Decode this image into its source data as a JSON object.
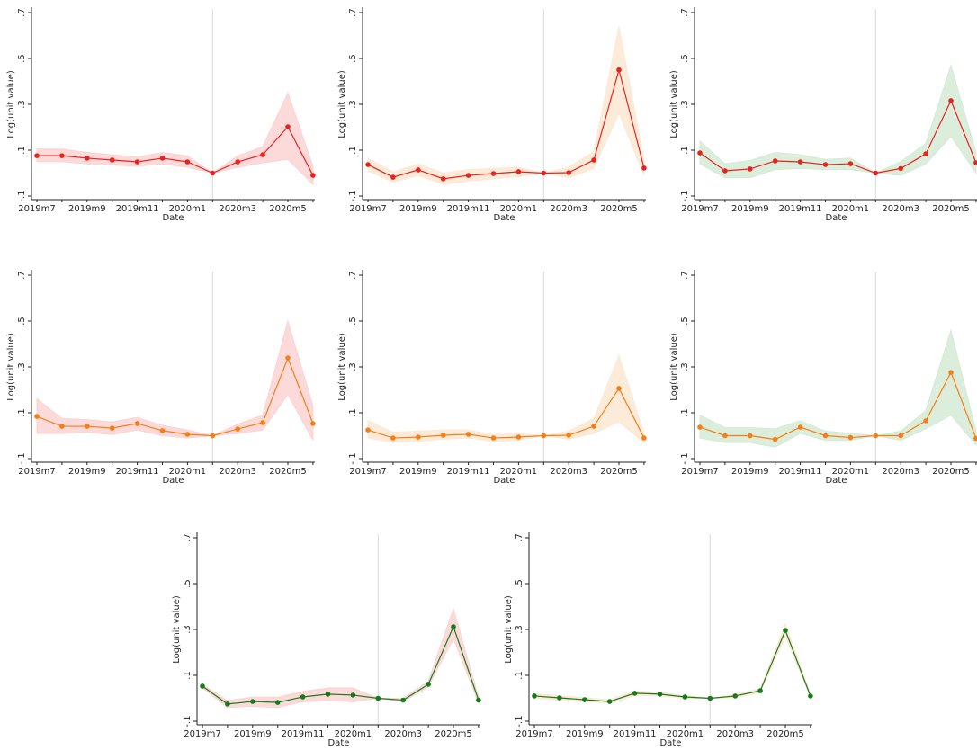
{
  "chart_data": [
    {
      "type": "line",
      "y_label": "Log(unit value)",
      "x_label": "Date",
      "categories": [
        "2019m7",
        null,
        "2019m9",
        null,
        "2019m11",
        null,
        "2020m1",
        null,
        "2020m3",
        null,
        "2020m5",
        null
      ],
      "ylim": [
        -0.1,
        0.7
      ],
      "yticks": [
        {
          "value": -0.1,
          "label": "-.1"
        },
        {
          "value": 0.1,
          "label": ".1"
        },
        {
          "value": 0.3,
          "label": ".3"
        },
        {
          "value": 0.5,
          "label": ".5"
        },
        {
          "value": 0.7,
          "label": ".7"
        }
      ],
      "xline": 7,
      "series": [
        {
          "color": "#e8231f",
          "values": [
            0.076,
            0.076,
            0.065,
            0.057,
            0.049,
            0.065,
            0.049,
            0,
            0.049,
            0.08,
            0.202,
            -0.01
          ]
        }
      ],
      "band": {
        "color": "#fbd3d3",
        "lower": [
          0.05,
          0.05,
          0.04,
          0.035,
          0.03,
          0.04,
          0.025,
          0,
          0.025,
          0.045,
          0.06,
          -0.05
        ],
        "upper": [
          0.105,
          0.105,
          0.09,
          0.08,
          0.07,
          0.09,
          0.075,
          0,
          0.075,
          0.115,
          0.35,
          0.03
        ]
      }
    },
    {
      "type": "line",
      "y_label": "Log(unit value)",
      "x_label": "Date",
      "categories": [
        "2019m7",
        null,
        "2019m9",
        null,
        "2019m11",
        null,
        "2020m1",
        null,
        "2020m3",
        null,
        "2020m5",
        null
      ],
      "ylim": [
        -0.1,
        0.7
      ],
      "yticks": [
        {
          "value": -0.1,
          "label": "-.1"
        },
        {
          "value": 0.1,
          "label": ".1"
        },
        {
          "value": 0.3,
          "label": ".3"
        },
        {
          "value": 0.5,
          "label": ".5"
        },
        {
          "value": 0.7,
          "label": ".7"
        }
      ],
      "xline": 7,
      "series": [
        {
          "color": "#e8231f",
          "values": [
            0.037,
            -0.018,
            0.014,
            -0.025,
            -0.01,
            -0.002,
            0.006,
            0,
            0.002,
            0.057,
            0.45,
            0.022
          ]
        }
      ],
      "band": {
        "color": "#fde8d4",
        "lower": [
          0.01,
          -0.04,
          -0.01,
          -0.05,
          -0.035,
          -0.025,
          -0.015,
          0,
          -0.02,
          0.02,
          0.26,
          -0.01
        ],
        "upper": [
          0.065,
          0.005,
          0.04,
          0,
          0.015,
          0.02,
          0.025,
          0,
          0.025,
          0.095,
          0.64,
          0.055
        ]
      }
    },
    {
      "type": "line",
      "y_label": "Log(unit value)",
      "x_label": "Date",
      "categories": [
        "2019m7",
        null,
        "2019m9",
        null,
        "2019m11",
        null,
        "2020m1",
        null,
        "2020m3",
        null,
        "2020m5",
        null
      ],
      "ylim": [
        -0.1,
        0.7
      ],
      "yticks": [
        {
          "value": -0.1,
          "label": "-.1"
        },
        {
          "value": 0.1,
          "label": ".1"
        },
        {
          "value": 0.3,
          "label": ".3"
        },
        {
          "value": 0.5,
          "label": ".5"
        },
        {
          "value": 0.7,
          "label": ".7"
        }
      ],
      "xline": 7,
      "series": [
        {
          "color": "#e8231f",
          "values": [
            0.088,
            0.01,
            0.018,
            0.053,
            0.049,
            0.037,
            0.041,
            0,
            0.02,
            0.084,
            0.316,
            0.045
          ]
        }
      ],
      "band": {
        "color": "#d5ead5",
        "lower": [
          0.04,
          -0.02,
          -0.02,
          0.015,
          0.02,
          0.015,
          0.015,
          0,
          -0.01,
          0.04,
          0.16,
          0
        ],
        "upper": [
          0.14,
          0.04,
          0.055,
          0.09,
          0.08,
          0.06,
          0.065,
          0,
          0.05,
          0.13,
          0.47,
          0.09
        ]
      }
    },
    {
      "type": "line",
      "y_label": "Log(unit value)",
      "x_label": "Date",
      "categories": [
        "2019m7",
        null,
        "2019m9",
        null,
        "2019m11",
        null,
        "2020m1",
        null,
        "2020m3",
        null,
        "2020m5",
        null
      ],
      "ylim": [
        -0.1,
        0.7
      ],
      "yticks": [
        {
          "value": -0.1,
          "label": "-.1"
        },
        {
          "value": 0.1,
          "label": ".1"
        },
        {
          "value": 0.3,
          "label": ".3"
        },
        {
          "value": 0.5,
          "label": ".5"
        },
        {
          "value": 0.7,
          "label": ".7"
        }
      ],
      "xline": 7,
      "series": [
        {
          "color": "#f57f17",
          "values": [
            0.084,
            0.041,
            0.041,
            0.033,
            0.053,
            0.022,
            0.006,
            0,
            0.029,
            0.057,
            0.339,
            0.053
          ]
        }
      ],
      "band": {
        "color": "#fbd3d3",
        "lower": [
          0.01,
          0.01,
          0.015,
          0.005,
          0.025,
          0,
          -0.01,
          0,
          0.01,
          0.025,
          0.18,
          -0.02
        ],
        "upper": [
          0.16,
          0.075,
          0.07,
          0.06,
          0.08,
          0.045,
          0.025,
          0,
          0.05,
          0.09,
          0.5,
          0.13
        ]
      }
    },
    {
      "type": "line",
      "y_label": "Log(unit value)",
      "x_label": "Date",
      "categories": [
        "2019m7",
        null,
        "2019m9",
        null,
        "2019m11",
        null,
        "2020m1",
        null,
        "2020m3",
        null,
        "2020m5",
        null
      ],
      "ylim": [
        -0.1,
        0.7
      ],
      "yticks": [
        {
          "value": -0.1,
          "label": "-.1"
        },
        {
          "value": 0.1,
          "label": ".1"
        },
        {
          "value": 0.3,
          "label": ".3"
        },
        {
          "value": 0.5,
          "label": ".5"
        },
        {
          "value": 0.7,
          "label": ".7"
        }
      ],
      "xline": 7,
      "series": [
        {
          "color": "#f57f17",
          "values": [
            0.025,
            -0.01,
            -0.006,
            0.002,
            0.006,
            -0.01,
            -0.006,
            0,
            0.002,
            0.041,
            0.206,
            -0.01
          ]
        }
      ],
      "band": {
        "color": "#fde8d4",
        "lower": [
          -0.01,
          -0.03,
          -0.025,
          -0.015,
          -0.01,
          -0.025,
          -0.02,
          0,
          -0.015,
          0.01,
          0.06,
          -0.03
        ],
        "upper": [
          0.065,
          0.015,
          0.02,
          0.025,
          0.025,
          0.005,
          0.01,
          0,
          0.02,
          0.075,
          0.35,
          0.01
        ]
      }
    },
    {
      "type": "line",
      "y_label": "Log(unit value)",
      "x_label": "Date",
      "categories": [
        "2019m7",
        null,
        "2019m9",
        null,
        "2019m11",
        null,
        "2020m1",
        null,
        "2020m3",
        null,
        "2020m5",
        null
      ],
      "ylim": [
        -0.1,
        0.7
      ],
      "yticks": [
        {
          "value": -0.1,
          "label": "-.1"
        },
        {
          "value": 0.1,
          "label": ".1"
        },
        {
          "value": 0.3,
          "label": ".3"
        },
        {
          "value": 0.5,
          "label": ".5"
        },
        {
          "value": 0.7,
          "label": ".7"
        }
      ],
      "xline": 7,
      "series": [
        {
          "color": "#f57f17",
          "values": [
            0.037,
            0,
            0,
            -0.016,
            0.037,
            0,
            -0.008,
            0,
            0,
            0.065,
            0.276,
            -0.012
          ]
        }
      ],
      "band": {
        "color": "#d5ead5",
        "lower": [
          -0.01,
          -0.03,
          -0.03,
          -0.05,
          0.01,
          -0.02,
          -0.02,
          0,
          -0.02,
          0.03,
          0.09,
          -0.04
        ],
        "upper": [
          0.09,
          0.035,
          0.035,
          0.03,
          0.065,
          0.02,
          0.01,
          0,
          0.02,
          0.11,
          0.46,
          0.02
        ]
      }
    },
    {
      "type": "line",
      "y_label": "Log(unit value)",
      "x_label": "Date",
      "categories": [
        "2019m7",
        null,
        "2019m9",
        null,
        "2019m11",
        null,
        "2020m1",
        null,
        "2020m3",
        null,
        "2020m5",
        null
      ],
      "ylim": [
        -0.1,
        0.7
      ],
      "yticks": [
        {
          "value": -0.1,
          "label": "-.1"
        },
        {
          "value": 0.1,
          "label": ".1"
        },
        {
          "value": 0.3,
          "label": ".3"
        },
        {
          "value": 0.5,
          "label": ".5"
        },
        {
          "value": 0.7,
          "label": ".7"
        }
      ],
      "xline": 7,
      "series": [
        {
          "color": "#1a7a1a",
          "values": [
            0.053,
            -0.025,
            -0.014,
            -0.018,
            0.006,
            0.018,
            0.014,
            0,
            -0.008,
            0.061,
            0.312,
            -0.008
          ]
        }
      ],
      "band": {
        "color": "#fbd3d3",
        "lower": [
          0.045,
          -0.04,
          -0.035,
          -0.04,
          -0.015,
          -0.01,
          -0.015,
          0,
          -0.015,
          0.05,
          0.26,
          -0.02
        ],
        "upper": [
          0.06,
          -0.01,
          0.005,
          0.005,
          0.03,
          0.045,
          0.045,
          0,
          0,
          0.075,
          0.39,
          0.005
        ]
      }
    },
    {
      "type": "line",
      "y_label": "Log(unit value)",
      "x_label": "Date",
      "categories": [
        "2019m7",
        null,
        "2019m9",
        null,
        "2019m11",
        null,
        "2020m1",
        null,
        "2020m3",
        null,
        "2020m5",
        null
      ],
      "ylim": [
        -0.1,
        0.7
      ],
      "yticks": [
        {
          "value": -0.1,
          "label": "-.1"
        },
        {
          "value": 0.1,
          "label": ".1"
        },
        {
          "value": 0.3,
          "label": ".3"
        },
        {
          "value": 0.5,
          "label": ".5"
        },
        {
          "value": 0.7,
          "label": ".7"
        }
      ],
      "xline": 7,
      "series": [
        {
          "color": "#1a7a1a",
          "values": [
            0.01,
            0.002,
            -0.006,
            -0.014,
            0.022,
            0.018,
            0.006,
            0,
            0.01,
            0.033,
            0.296,
            0.01
          ]
        }
      ],
      "band": {
        "color": "#fde8d4",
        "lower": [
          0.0,
          -0.008,
          -0.014,
          -0.022,
          0.012,
          0.01,
          0,
          0,
          0.003,
          0.025,
          0.27,
          0.003
        ],
        "upper": [
          0.02,
          0.012,
          0.002,
          -0.006,
          0.032,
          0.026,
          0.012,
          0,
          0.017,
          0.041,
          0.325,
          0.017
        ]
      }
    }
  ]
}
